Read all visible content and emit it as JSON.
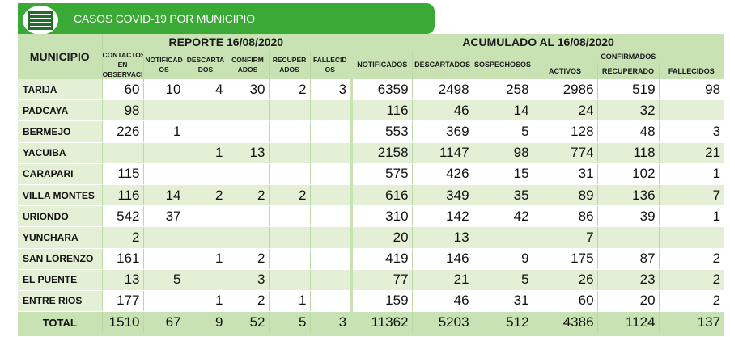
{
  "banner": {
    "title": "CASOS COVID-19 POR MUNICIPIO"
  },
  "headers": {
    "municipio": "MUNICIPIO",
    "reporte": "REPORTE 16/08/2020",
    "acumulado": "ACUMULADO AL 16/08/2020",
    "confirmados": "CONFIRMADOS",
    "contactos": "CONTACTOS EN OBSERVACI",
    "notificados_r": "NOTIFICAD OS",
    "descartados_r": "DESCARTA DOS",
    "confirmados_r": "CONFIRM ADOS",
    "recuperados_r": "RECUPER ADOS",
    "fallecidos_r": "FALLECID OS",
    "notificados_a": "NOTIFICADOS",
    "descartados_a": "DESCARTADOS",
    "sospechosos_a": "SOSPECHOSOS",
    "activos": "ACTIVOS",
    "recuperado": "RECUPERADO",
    "fallecidos_a": "FALLECIDOS"
  },
  "rows": [
    {
      "name": "TARIJA",
      "c": [
        "60",
        "10",
        "4",
        "30",
        "2",
        "3",
        "6359",
        "2498",
        "258",
        "2986",
        "519",
        "98"
      ]
    },
    {
      "name": "PADCAYA",
      "c": [
        "98",
        "",
        "",
        "",
        "",
        "",
        "116",
        "46",
        "14",
        "24",
        "32",
        ""
      ]
    },
    {
      "name": "BERMEJO",
      "c": [
        "226",
        "1",
        "",
        "",
        "",
        "",
        "553",
        "369",
        "5",
        "128",
        "48",
        "3"
      ]
    },
    {
      "name": "YACUIBA",
      "c": [
        "",
        "",
        "1",
        "13",
        "",
        "",
        "2158",
        "1147",
        "98",
        "774",
        "118",
        "21"
      ]
    },
    {
      "name": "CARAPARI",
      "c": [
        "115",
        "",
        "",
        "",
        "",
        "",
        "575",
        "426",
        "15",
        "31",
        "102",
        "1"
      ]
    },
    {
      "name": "VILLA MONTES",
      "c": [
        "116",
        "14",
        "2",
        "2",
        "2",
        "",
        "616",
        "349",
        "35",
        "89",
        "136",
        "7"
      ]
    },
    {
      "name": "URIONDO",
      "c": [
        "542",
        "37",
        "",
        "",
        "",
        "",
        "310",
        "142",
        "42",
        "86",
        "39",
        "1"
      ]
    },
    {
      "name": "YUNCHARA",
      "c": [
        "2",
        "",
        "",
        "",
        "",
        "",
        "20",
        "13",
        "",
        "7",
        "",
        ""
      ]
    },
    {
      "name": "SAN LORENZO",
      "c": [
        "161",
        "",
        "1",
        "2",
        "",
        "",
        "419",
        "146",
        "9",
        "175",
        "87",
        "2"
      ]
    },
    {
      "name": "EL PUENTE",
      "c": [
        "13",
        "5",
        "",
        "3",
        "",
        "",
        "77",
        "21",
        "5",
        "26",
        "23",
        "2"
      ]
    },
    {
      "name": "ENTRE RIOS",
      "c": [
        "177",
        "",
        "1",
        "2",
        "1",
        "",
        "159",
        "46",
        "31",
        "60",
        "20",
        "2"
      ]
    }
  ],
  "total": {
    "name": "TOTAL",
    "c": [
      "1510",
      "67",
      "9",
      "52",
      "5",
      "3",
      "11362",
      "5203",
      "512",
      "4386",
      "1124",
      "137"
    ]
  }
}
